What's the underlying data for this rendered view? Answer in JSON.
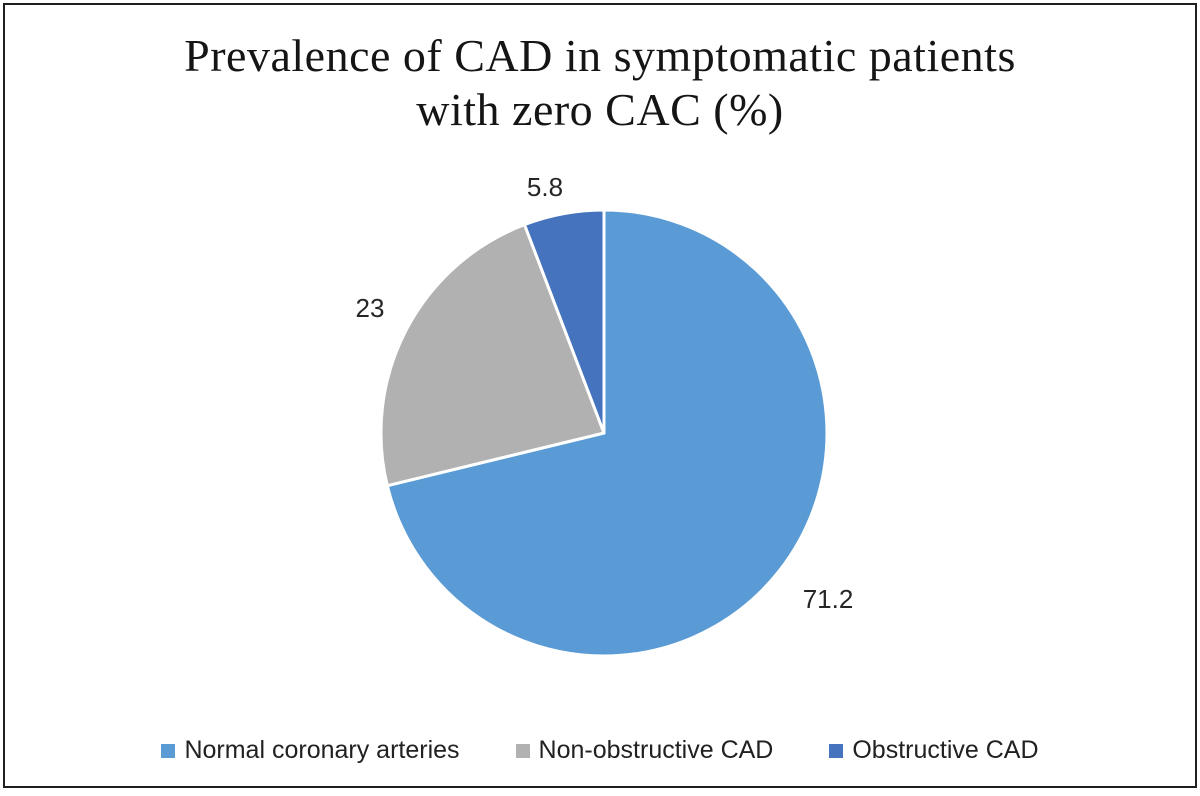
{
  "chart_data": {
    "type": "pie",
    "title": "Prevalence of CAD in symptomatic patients with zero CAC (%)",
    "title_lines": [
      "Prevalence of CAD in symptomatic patients",
      "with zero CAC (%)"
    ],
    "unit": "%",
    "start_angle_deg": 0,
    "direction": "clockwise",
    "data_labels": "outside",
    "legend_position": "bottom",
    "slice_separator_color": "#ffffff",
    "slices": [
      {
        "name": "Normal coronary arteries",
        "value": 71.2,
        "label": "71.2",
        "color": "#5B9BD5"
      },
      {
        "name": "Non-obstructive CAD",
        "value": 23,
        "label": "23",
        "color": "#B1B1B2"
      },
      {
        "name": "Obstructive CAD",
        "value": 5.8,
        "label": "5.8",
        "color": "#4573BE"
      }
    ]
  }
}
